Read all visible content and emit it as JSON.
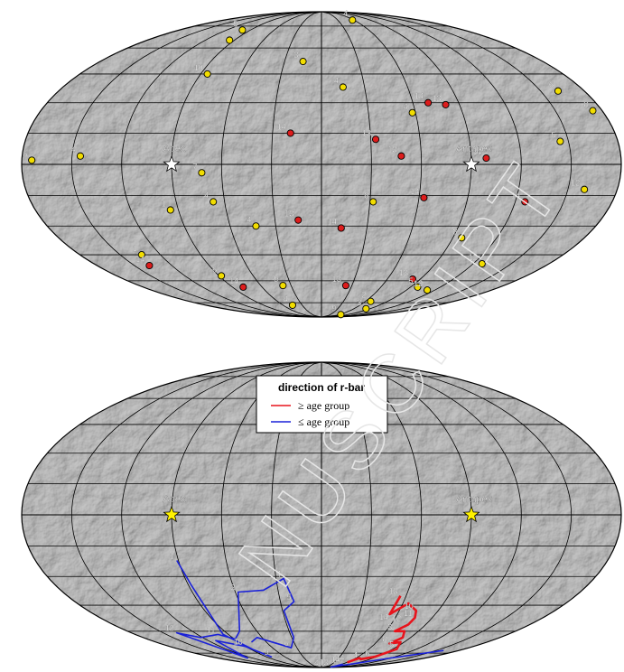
{
  "chart_data": [
    {
      "type": "scatter",
      "projection": "mollweide",
      "background": "grey cratered surface map",
      "grid": true,
      "markers": [
        {
          "label": "Apex",
          "lon": -90,
          "lat": 0,
          "symbol": "star",
          "color": "#ffffff"
        },
        {
          "label": "Antapex",
          "lon": 90,
          "lat": 0,
          "symbol": "star",
          "color": "#ffffff"
        }
      ],
      "series": [
        {
          "color": "#f2dd00",
          "points": [
            {
              "label": "9",
              "lon": -100,
              "lat": 72
            },
            {
              "label": "",
              "lon": -95,
              "lat": 65
            },
            {
              "label": "10",
              "lon": -85,
              "lat": 45
            },
            {
              "label": "3",
              "lon": -15,
              "lat": 52
            },
            {
              "label": "4",
              "lon": 15,
              "lat": 38
            },
            {
              "label": "4",
              "lon": 57,
              "lat": 80
            },
            {
              "label": "4",
              "lon": 58,
              "lat": 25
            },
            {
              "label": "6",
              "lon": 162,
              "lat": 36
            },
            {
              "label": "8",
              "lon": 174,
              "lat": 26
            },
            {
              "label": "5",
              "lon": 145,
              "lat": 11
            },
            {
              "label": "4",
              "lon": -145,
              "lat": 4
            },
            {
              "label": "6",
              "lon": -174,
              "lat": 2
            },
            {
              "label": "7",
              "lon": -72,
              "lat": -4
            },
            {
              "label": "4",
              "lon": -67,
              "lat": -18
            },
            {
              "label": "1",
              "lon": -95,
              "lat": -22
            },
            {
              "label": "4",
              "lon": -43,
              "lat": -30
            },
            {
              "label": "8",
              "lon": 32,
              "lat": -18
            },
            {
              "label": "12",
              "lon": 160,
              "lat": -12
            },
            {
              "label": "8",
              "lon": 96,
              "lat": -36
            },
            {
              "label": "12",
              "lon": 127,
              "lat": -50
            },
            {
              "label": "12",
              "lon": 112,
              "lat": -66
            },
            {
              "label": "5",
              "lon": 97,
              "lat": -64
            },
            {
              "label": "1",
              "lon": -134,
              "lat": -45
            },
            {
              "label": "6",
              "lon": -88,
              "lat": -57
            },
            {
              "label": "9",
              "lon": -38,
              "lat": -63
            },
            {
              "label": "4",
              "lon": -45,
              "lat": -77
            },
            {
              "label": "2",
              "lon": 67,
              "lat": -74
            },
            {
              "label": "3",
              "lon": 82,
              "lat": -80
            },
            {
              "label": "9",
              "lon": 65,
              "lat": -86
            }
          ]
        },
        {
          "color": "#dd1c1c",
          "points": [
            {
              "label": "14",
              "lon": 70,
              "lat": 30
            },
            {
              "label": "13",
              "lon": 81,
              "lat": 29
            },
            {
              "label": "14",
              "lon": -19,
              "lat": 15
            },
            {
              "label": "13",
              "lon": 33,
              "lat": 12
            },
            {
              "label": "14",
              "lon": 99,
              "lat": 3
            },
            {
              "label": "13",
              "lon": 48,
              "lat": 4
            },
            {
              "label": "14",
              "lon": 63,
              "lat": -16
            },
            {
              "label": "14",
              "lon": 126,
              "lat": -18
            },
            {
              "label": "13",
              "lon": -15,
              "lat": -27
            },
            {
              "label": "14",
              "lon": 13,
              "lat": -31
            },
            {
              "label": "14",
              "lon": -138,
              "lat": -51
            },
            {
              "label": "14",
              "lon": -79,
              "lat": -64
            },
            {
              "label": "13",
              "lon": 24,
              "lat": -63
            },
            {
              "label": "13",
              "lon": 83,
              "lat": -59
            }
          ]
        }
      ]
    },
    {
      "type": "line",
      "projection": "mollweide",
      "background": "grey cratered surface map",
      "grid": true,
      "legend": {
        "title": "direction of r-bar",
        "placement": "top-center",
        "entries": [
          {
            "text": "≥ age group",
            "color": "#e8141c"
          },
          {
            "text": "≤ age group",
            "color": "#1a21d8"
          }
        ]
      },
      "markers": [
        {
          "label": "Apex",
          "lon": -90,
          "lat": 0,
          "symbol": "star",
          "color": "#fff200"
        },
        {
          "label": "Antapex",
          "lon": 90,
          "lat": 0,
          "symbol": "star",
          "color": "#fff200"
        }
      ],
      "series": [
        {
          "color": "#1a21d8",
          "points": [
            {
              "label": "1",
              "lon": -91,
              "lat": -22
            },
            {
              "label": "",
              "lon": -88,
              "lat": -35
            },
            {
              "label": "",
              "lon": -95,
              "lat": -62
            },
            {
              "label": "",
              "lon": -87,
              "lat": -73
            },
            {
              "label": "9",
              "lon": -82,
              "lat": -78
            },
            {
              "label": "10",
              "lon": -90,
              "lat": -70
            },
            {
              "label": "",
              "lon": -112,
              "lat": -66
            },
            {
              "label": "",
              "lon": -125,
              "lat": -78
            },
            {
              "label": "",
              "lon": -128,
              "lat": -79
            },
            {
              "label": "12",
              "lon": -137,
              "lat": -61
            },
            {
              "label": "",
              "lon": -122,
              "lat": -64
            },
            {
              "label": "11",
              "lon": -100,
              "lat": -62
            },
            {
              "label": "",
              "lon": -89,
              "lat": -65
            },
            {
              "label": "",
              "lon": -76,
              "lat": -60
            },
            {
              "label": "3",
              "lon": -58,
              "lat": -38
            },
            {
              "label": "",
              "lon": -40,
              "lat": -37
            },
            {
              "label": "4",
              "lon": -25,
              "lat": -31
            },
            {
              "label": "5",
              "lon": -20,
              "lat": -43
            },
            {
              "label": "",
              "lon": -29,
              "lat": -48
            },
            {
              "label": "",
              "lon": -28,
              "lat": -64
            },
            {
              "label": "6",
              "lon": -37,
              "lat": -71
            },
            {
              "label": "",
              "lon": -65,
              "lat": -64
            },
            {
              "label": "",
              "lon": -76,
              "lat": -67
            }
          ]
        },
        {
          "color": "#1a21d8",
          "points": [
            {
              "label": "14",
              "lon": 62,
              "lat": -85
            },
            {
              "label": "13",
              "lon": 80,
              "lat": -89
            },
            {
              "label": "",
              "lon": 120,
              "lat": -79
            },
            {
              "label": "",
              "lon": 160,
              "lat": -73
            }
          ]
        },
        {
          "color": "#e8141c",
          "points": [
            {
              "label": "13",
              "lon": 56,
              "lat": -40
            },
            {
              "label": "",
              "lon": 54,
              "lat": -50
            },
            {
              "label": "",
              "lon": 64,
              "lat": -44
            },
            {
              "label": "10",
              "lon": 73,
              "lat": -48
            },
            {
              "label": "11",
              "lon": 76,
              "lat": -52
            },
            {
              "label": "",
              "lon": 75,
              "lat": -56
            },
            {
              "label": "3",
              "lon": 68,
              "lat": -60
            },
            {
              "label": "",
              "lon": 77,
              "lat": -60
            },
            {
              "label": "",
              "lon": 82,
              "lat": -64
            },
            {
              "label": "8",
              "lon": 76,
              "lat": -68
            },
            {
              "label": "",
              "lon": 86,
              "lat": -67
            },
            {
              "label": "5",
              "lon": 95,
              "lat": -72
            },
            {
              "label": "",
              "lon": 87,
              "lat": -78
            },
            {
              "label": "4",
              "lon": 72,
              "lat": -80
            },
            {
              "label": "",
              "lon": 66,
              "lat": -79
            },
            {
              "label": "14",
              "lon": 60,
              "lat": -83
            }
          ]
        }
      ],
      "point_labels": [
        {
          "label": "14",
          "lon": 58,
          "lat": -54
        },
        {
          "label": "12",
          "lon": 70,
          "lat": -55
        },
        {
          "label": "2",
          "lon": 58,
          "lat": -74
        },
        {
          "label": "6",
          "lon": 88,
          "lat": -79
        },
        {
          "label": "4",
          "lon": 49,
          "lat": -90
        }
      ]
    }
  ]
}
